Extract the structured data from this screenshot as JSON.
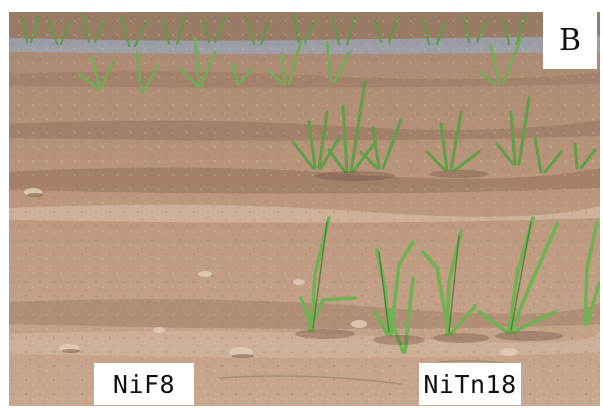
{
  "figure": {
    "panel_letter": "B",
    "plots": [
      {
        "label": "NiF8"
      },
      {
        "label": "NiTn18"
      }
    ]
  },
  "palette": {
    "soil": "#b79278",
    "soil_light": "#ccae95",
    "soil_shadow": "#8f6c55",
    "leaf": "#6fae52",
    "leaf_dark": "#3f7a30",
    "mulch": "#9aa3b0"
  }
}
